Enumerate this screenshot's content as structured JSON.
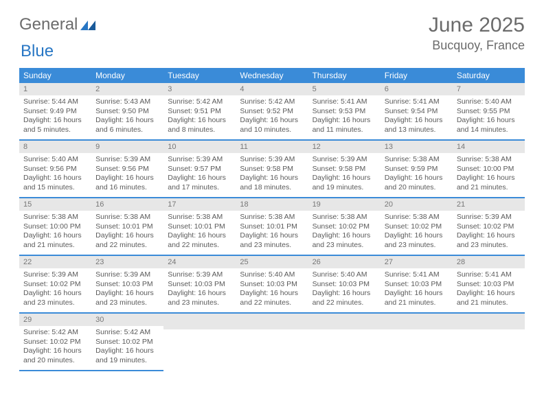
{
  "logo": {
    "word1": "General",
    "word2": "Blue"
  },
  "title": "June 2025",
  "location": "Bucquoy, France",
  "colors": {
    "header_bg": "#3a8bd8",
    "header_text": "#ffffff",
    "daynum_bg": "#e7e7e7",
    "border": "#3a8bd8",
    "text": "#5a5a5a",
    "logo_gray": "#6b6b6b",
    "logo_blue": "#2776c4"
  },
  "daysOfWeek": [
    "Sunday",
    "Monday",
    "Tuesday",
    "Wednesday",
    "Thursday",
    "Friday",
    "Saturday"
  ],
  "days": [
    {
      "n": "1",
      "sr": "Sunrise: 5:44 AM",
      "ss": "Sunset: 9:49 PM",
      "d1": "Daylight: 16 hours",
      "d2": "and 5 minutes."
    },
    {
      "n": "2",
      "sr": "Sunrise: 5:43 AM",
      "ss": "Sunset: 9:50 PM",
      "d1": "Daylight: 16 hours",
      "d2": "and 6 minutes."
    },
    {
      "n": "3",
      "sr": "Sunrise: 5:42 AM",
      "ss": "Sunset: 9:51 PM",
      "d1": "Daylight: 16 hours",
      "d2": "and 8 minutes."
    },
    {
      "n": "4",
      "sr": "Sunrise: 5:42 AM",
      "ss": "Sunset: 9:52 PM",
      "d1": "Daylight: 16 hours",
      "d2": "and 10 minutes."
    },
    {
      "n": "5",
      "sr": "Sunrise: 5:41 AM",
      "ss": "Sunset: 9:53 PM",
      "d1": "Daylight: 16 hours",
      "d2": "and 11 minutes."
    },
    {
      "n": "6",
      "sr": "Sunrise: 5:41 AM",
      "ss": "Sunset: 9:54 PM",
      "d1": "Daylight: 16 hours",
      "d2": "and 13 minutes."
    },
    {
      "n": "7",
      "sr": "Sunrise: 5:40 AM",
      "ss": "Sunset: 9:55 PM",
      "d1": "Daylight: 16 hours",
      "d2": "and 14 minutes."
    },
    {
      "n": "8",
      "sr": "Sunrise: 5:40 AM",
      "ss": "Sunset: 9:56 PM",
      "d1": "Daylight: 16 hours",
      "d2": "and 15 minutes."
    },
    {
      "n": "9",
      "sr": "Sunrise: 5:39 AM",
      "ss": "Sunset: 9:56 PM",
      "d1": "Daylight: 16 hours",
      "d2": "and 16 minutes."
    },
    {
      "n": "10",
      "sr": "Sunrise: 5:39 AM",
      "ss": "Sunset: 9:57 PM",
      "d1": "Daylight: 16 hours",
      "d2": "and 17 minutes."
    },
    {
      "n": "11",
      "sr": "Sunrise: 5:39 AM",
      "ss": "Sunset: 9:58 PM",
      "d1": "Daylight: 16 hours",
      "d2": "and 18 minutes."
    },
    {
      "n": "12",
      "sr": "Sunrise: 5:39 AM",
      "ss": "Sunset: 9:58 PM",
      "d1": "Daylight: 16 hours",
      "d2": "and 19 minutes."
    },
    {
      "n": "13",
      "sr": "Sunrise: 5:38 AM",
      "ss": "Sunset: 9:59 PM",
      "d1": "Daylight: 16 hours",
      "d2": "and 20 minutes."
    },
    {
      "n": "14",
      "sr": "Sunrise: 5:38 AM",
      "ss": "Sunset: 10:00 PM",
      "d1": "Daylight: 16 hours",
      "d2": "and 21 minutes."
    },
    {
      "n": "15",
      "sr": "Sunrise: 5:38 AM",
      "ss": "Sunset: 10:00 PM",
      "d1": "Daylight: 16 hours",
      "d2": "and 21 minutes."
    },
    {
      "n": "16",
      "sr": "Sunrise: 5:38 AM",
      "ss": "Sunset: 10:01 PM",
      "d1": "Daylight: 16 hours",
      "d2": "and 22 minutes."
    },
    {
      "n": "17",
      "sr": "Sunrise: 5:38 AM",
      "ss": "Sunset: 10:01 PM",
      "d1": "Daylight: 16 hours",
      "d2": "and 22 minutes."
    },
    {
      "n": "18",
      "sr": "Sunrise: 5:38 AM",
      "ss": "Sunset: 10:01 PM",
      "d1": "Daylight: 16 hours",
      "d2": "and 23 minutes."
    },
    {
      "n": "19",
      "sr": "Sunrise: 5:38 AM",
      "ss": "Sunset: 10:02 PM",
      "d1": "Daylight: 16 hours",
      "d2": "and 23 minutes."
    },
    {
      "n": "20",
      "sr": "Sunrise: 5:38 AM",
      "ss": "Sunset: 10:02 PM",
      "d1": "Daylight: 16 hours",
      "d2": "and 23 minutes."
    },
    {
      "n": "21",
      "sr": "Sunrise: 5:39 AM",
      "ss": "Sunset: 10:02 PM",
      "d1": "Daylight: 16 hours",
      "d2": "and 23 minutes."
    },
    {
      "n": "22",
      "sr": "Sunrise: 5:39 AM",
      "ss": "Sunset: 10:02 PM",
      "d1": "Daylight: 16 hours",
      "d2": "and 23 minutes."
    },
    {
      "n": "23",
      "sr": "Sunrise: 5:39 AM",
      "ss": "Sunset: 10:03 PM",
      "d1": "Daylight: 16 hours",
      "d2": "and 23 minutes."
    },
    {
      "n": "24",
      "sr": "Sunrise: 5:39 AM",
      "ss": "Sunset: 10:03 PM",
      "d1": "Daylight: 16 hours",
      "d2": "and 23 minutes."
    },
    {
      "n": "25",
      "sr": "Sunrise: 5:40 AM",
      "ss": "Sunset: 10:03 PM",
      "d1": "Daylight: 16 hours",
      "d2": "and 22 minutes."
    },
    {
      "n": "26",
      "sr": "Sunrise: 5:40 AM",
      "ss": "Sunset: 10:03 PM",
      "d1": "Daylight: 16 hours",
      "d2": "and 22 minutes."
    },
    {
      "n": "27",
      "sr": "Sunrise: 5:41 AM",
      "ss": "Sunset: 10:03 PM",
      "d1": "Daylight: 16 hours",
      "d2": "and 21 minutes."
    },
    {
      "n": "28",
      "sr": "Sunrise: 5:41 AM",
      "ss": "Sunset: 10:03 PM",
      "d1": "Daylight: 16 hours",
      "d2": "and 21 minutes."
    },
    {
      "n": "29",
      "sr": "Sunrise: 5:42 AM",
      "ss": "Sunset: 10:02 PM",
      "d1": "Daylight: 16 hours",
      "d2": "and 20 minutes."
    },
    {
      "n": "30",
      "sr": "Sunrise: 5:42 AM",
      "ss": "Sunset: 10:02 PM",
      "d1": "Daylight: 16 hours",
      "d2": "and 19 minutes."
    }
  ]
}
